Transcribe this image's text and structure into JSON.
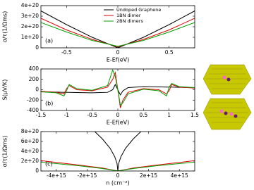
{
  "chart_data": [
    {
      "type": "line",
      "ylabel": "σ/τ(1/Ωms)",
      "xlabel": "E-Ef(eV)",
      "annotation": "(a)",
      "legend": "top",
      "xlim": [
        -0.75,
        0.75
      ],
      "xticks": [
        -0.5,
        0,
        0.5
      ],
      "ylim": [
        0,
        4e+20
      ],
      "yticks": [
        0,
        {
          "value": 1e+20,
          "label": "1e+20"
        },
        {
          "value": 2e+20,
          "label": "2e+20"
        },
        {
          "value": 3e+20,
          "label": "3e+20"
        },
        {
          "value": 4e+20,
          "label": "4e+20"
        }
      ],
      "series": [
        {
          "name": "Undoped Graphene",
          "color": "#000000",
          "x": [
            -0.75,
            -0.5,
            -0.25,
            0,
            0.25,
            0.5,
            0.75
          ],
          "values": [
            3.5e+20,
            2.2e+20,
            1e+20,
            0,
            1e+20,
            2.2e+20,
            3.5e+20
          ]
        },
        {
          "name": "1BN dimer",
          "color": "#e00000",
          "x": [
            -0.75,
            -0.5,
            -0.25,
            0,
            0.25,
            0.5,
            0.75
          ],
          "values": [
            2.8e+20,
            1.7e+20,
            8e+19,
            1e+19,
            8e+19,
            1.7e+20,
            2.8e+20
          ]
        },
        {
          "name": "2BN dimers",
          "color": "#00a000",
          "x": [
            -0.75,
            -0.5,
            -0.25,
            0,
            0.25,
            0.5,
            0.75
          ],
          "values": [
            2.4e+20,
            1.5e+20,
            7e+19,
            1.5e+19,
            7e+19,
            1.5e+20,
            2.4e+20
          ]
        }
      ]
    },
    {
      "type": "line",
      "ylabel": "S(μV/K)",
      "xlabel": "E-Ef(eV)",
      "annotation": "(b)",
      "xlim": [
        -1.5,
        1.5
      ],
      "xticks": [
        -1.5,
        -1,
        -0.5,
        0,
        0.5,
        1,
        1.5
      ],
      "ylim": [
        -400,
        400
      ],
      "yticks": [
        -400,
        -200,
        0,
        200,
        400
      ],
      "series": [
        {
          "color": "#000000",
          "x": [
            -1.5,
            -1.2,
            -1.05,
            -1,
            -0.95,
            -0.8,
            -0.5,
            -0.2,
            -0.1,
            -0.05,
            0,
            0.05,
            0.1,
            0.2,
            0.5,
            0.8,
            0.95,
            1,
            1.05,
            1.2,
            1.5
          ],
          "values": [
            -40,
            -45,
            -50,
            -50,
            -50,
            -55,
            -60,
            -50,
            0,
            100,
            0,
            -100,
            -20,
            40,
            60,
            55,
            50,
            50,
            50,
            45,
            40
          ]
        },
        {
          "color": "#e00000",
          "x": [
            -1.5,
            -1.2,
            -1.05,
            -1,
            -0.95,
            -0.8,
            -0.5,
            -0.2,
            -0.1,
            -0.05,
            0,
            0.05,
            0.1,
            0.2,
            0.5,
            0.8,
            0.95,
            1,
            1.05,
            1.2,
            1.5
          ],
          "values": [
            -30,
            -50,
            -80,
            20,
            80,
            0,
            -20,
            50,
            200,
            330,
            0,
            -350,
            -200,
            -50,
            20,
            0,
            -80,
            -20,
            100,
            50,
            30
          ]
        },
        {
          "color": "#00a000",
          "x": [
            -1.5,
            -1.2,
            -1.05,
            -1,
            -0.95,
            -0.8,
            -0.5,
            -0.2,
            -0.1,
            -0.05,
            0,
            0.05,
            0.1,
            0.2,
            0.5,
            0.8,
            0.95,
            1,
            1.05,
            1.2,
            1.5
          ],
          "values": [
            -40,
            -60,
            -120,
            -20,
            100,
            20,
            -10,
            80,
            380,
            250,
            0,
            -300,
            -250,
            -80,
            10,
            -20,
            -120,
            50,
            120,
            60,
            40
          ]
        }
      ]
    },
    {
      "type": "line",
      "ylabel": "σ/τ(1/Ωms)",
      "xlabel": "n (cm⁻²)",
      "annotation": "(c)",
      "xlim": [
        -5000000000000000.0,
        5000000000000000.0
      ],
      "xticks": [
        {
          "value": -4000000000000000.0,
          "label": "-4e+15"
        },
        {
          "value": -2000000000000000.0,
          "label": "-2e+15"
        },
        0,
        {
          "value": 2000000000000000.0,
          "label": "2e+15"
        },
        {
          "value": 4000000000000000.0,
          "label": "4e+15"
        }
      ],
      "ylim": [
        0,
        8e+20
      ],
      "yticks": [
        0,
        {
          "value": 2e+20,
          "label": "2e+20"
        },
        {
          "value": 4e+20,
          "label": "4e+20"
        },
        {
          "value": 6e+20,
          "label": "6e+20"
        },
        {
          "value": 8e+20,
          "label": "8e+20"
        }
      ],
      "series": [
        {
          "color": "#000000",
          "x": [
            -1500000000000000.0,
            -1000000000000000.0,
            -500000000000000.0,
            -200000000000000.0,
            -50000000000000.0,
            0,
            50000000000000.0,
            200000000000000.0,
            500000000000000.0,
            1000000000000000.0,
            1500000000000000.0
          ],
          "values": [
            8e+20,
            6.5e+20,
            4.6e+20,
            2.9e+20,
            1.5e+20,
            0,
            1.5e+20,
            2.9e+20,
            4.6e+20,
            6.5e+20,
            8e+20
          ]
        },
        {
          "color": "#e00000",
          "x": [
            -5000000000000000.0,
            -2500000000000000.0,
            -1000000000000000.0,
            0,
            1000000000000000.0,
            2500000000000000.0,
            5000000000000000.0
          ],
          "values": [
            2.1e+20,
            1.2e+20,
            6e+19,
            0,
            6e+19,
            1.2e+20,
            2.1e+20
          ]
        },
        {
          "color": "#00a000",
          "x": [
            -5000000000000000.0,
            -2500000000000000.0,
            -1000000000000000.0,
            0,
            1000000000000000.0,
            2500000000000000.0,
            5000000000000000.0
          ],
          "values": [
            1.8e+20,
            1.05e+20,
            5e+19,
            0,
            5e+19,
            1.05e+20,
            1.8e+20
          ]
        }
      ]
    }
  ]
}
